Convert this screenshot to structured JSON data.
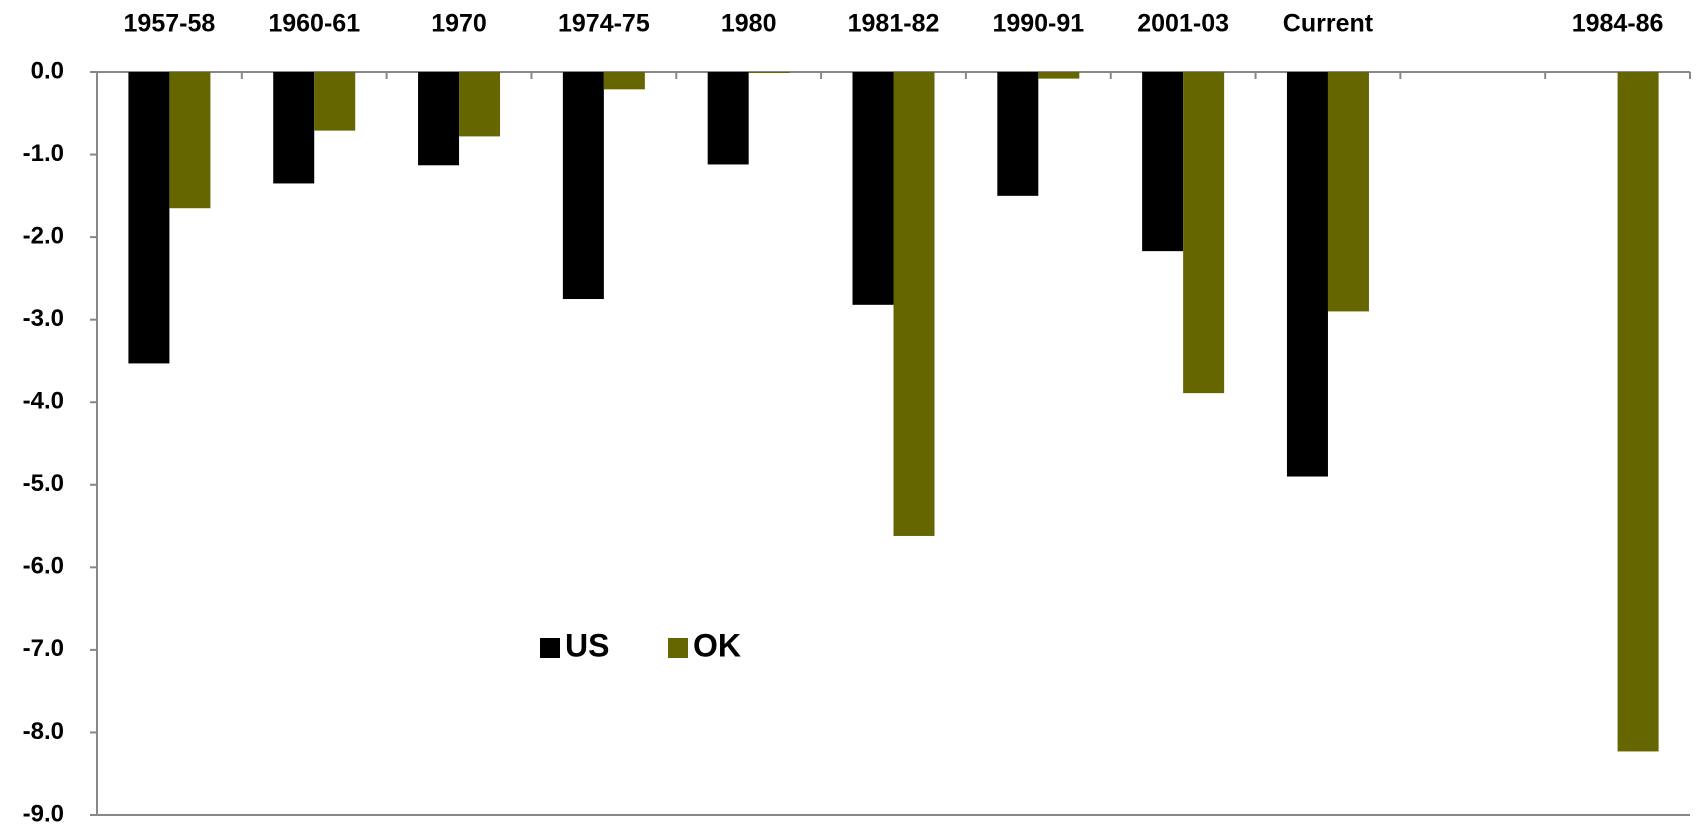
{
  "chart_data": {
    "type": "bar",
    "categories": [
      "1957-58",
      "1960-61",
      "1970",
      "1974-75",
      "1980",
      "1981-82",
      "1990-91",
      "2001-03",
      "Current",
      null,
      "1984-86"
    ],
    "series": [
      {
        "name": "US",
        "color": "#000000",
        "values": [
          -3.53,
          -1.35,
          -1.13,
          -2.75,
          -1.12,
          -2.82,
          -1.5,
          -2.17,
          -4.9,
          null,
          null
        ]
      },
      {
        "name": "OK",
        "color": "#666600",
        "values": [
          -1.65,
          -0.71,
          -0.78,
          -0.21,
          -0.01,
          -5.62,
          -0.08,
          -3.89,
          -2.9,
          null,
          -8.23
        ]
      }
    ],
    "ylim": [
      -9,
      0
    ],
    "yticks": [
      {
        "value": 0,
        "label": "0.0"
      },
      {
        "value": -1,
        "label": "-1.0"
      },
      {
        "value": -2,
        "label": "-2.0"
      },
      {
        "value": -3,
        "label": "-3.0"
      },
      {
        "value": -4,
        "label": "-4.0"
      },
      {
        "value": -5,
        "label": "-5.0"
      },
      {
        "value": -6,
        "label": "-6.0"
      },
      {
        "value": -7,
        "label": "-7.0"
      },
      {
        "value": -8,
        "label": "-8.0"
      },
      {
        "value": -9,
        "label": "-9.0"
      }
    ],
    "grid": false,
    "legend": "center"
  }
}
